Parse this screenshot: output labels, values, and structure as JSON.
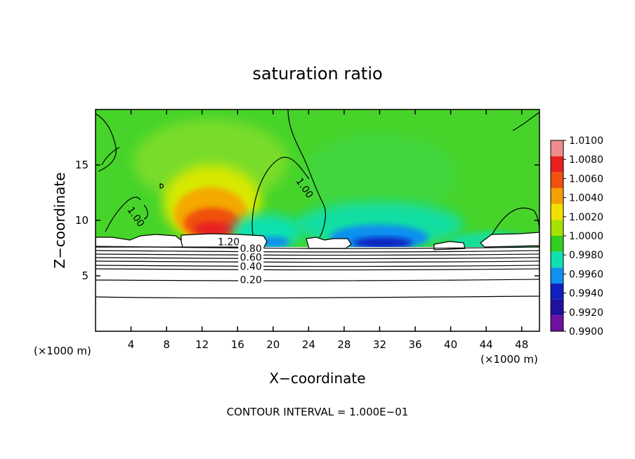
{
  "chart_data": {
    "type": "heatmap",
    "title": "saturation ratio",
    "xlabel": "X−coordinate",
    "ylabel": "Z−coordinate",
    "x_unit_left": "(×1000 m)",
    "x_unit_right": "(×1000 m)",
    "xlim": [
      0,
      50
    ],
    "ylim": [
      0,
      20
    ],
    "x_ticks": [
      4,
      8,
      12,
      16,
      20,
      24,
      28,
      32,
      36,
      40,
      44,
      48
    ],
    "y_ticks": [
      5,
      10,
      15
    ],
    "contour_interval_text": "CONTOUR INTERVAL = 1.000E−01",
    "colorbar": {
      "levels": [
        "1.0100",
        "1.0080",
        "1.0060",
        "1.0040",
        "1.0020",
        "1.0000",
        "0.9980",
        "0.9960",
        "0.9940",
        "0.9920",
        "0.9900"
      ],
      "colors": [
        "#f08c8c",
        "#e82020",
        "#f05010",
        "#f4a000",
        "#f0e000",
        "#a8e000",
        "#30d020",
        "#10e0b0",
        "#1090f0",
        "#1020c0",
        "#2010a0",
        "#7010a0"
      ]
    },
    "contour_labels": [
      {
        "text": "1.20",
        "x": 15.0,
        "y": 8.0
      },
      {
        "text": "0.80",
        "x": 17.5,
        "y": 7.4
      },
      {
        "text": "0.60",
        "x": 17.5,
        "y": 6.6
      },
      {
        "text": "0.40",
        "x": 17.5,
        "y": 5.8
      },
      {
        "text": "0.20",
        "x": 17.5,
        "y": 4.6
      },
      {
        "text": "1.00",
        "x": 4.5,
        "y": 10.3
      },
      {
        "text": "1.00",
        "x": 23.5,
        "y": 12.9
      }
    ],
    "field_regions": {
      "background_value": 1.001,
      "warm_peak": {
        "x": 13.5,
        "z": 10.0,
        "value": 1.007
      },
      "dry_peak": {
        "x": 31.5,
        "z": 8.5,
        "value": 0.993
      },
      "subsaturated_below_z": 7.8
    },
    "grid": false,
    "legend": "right"
  }
}
